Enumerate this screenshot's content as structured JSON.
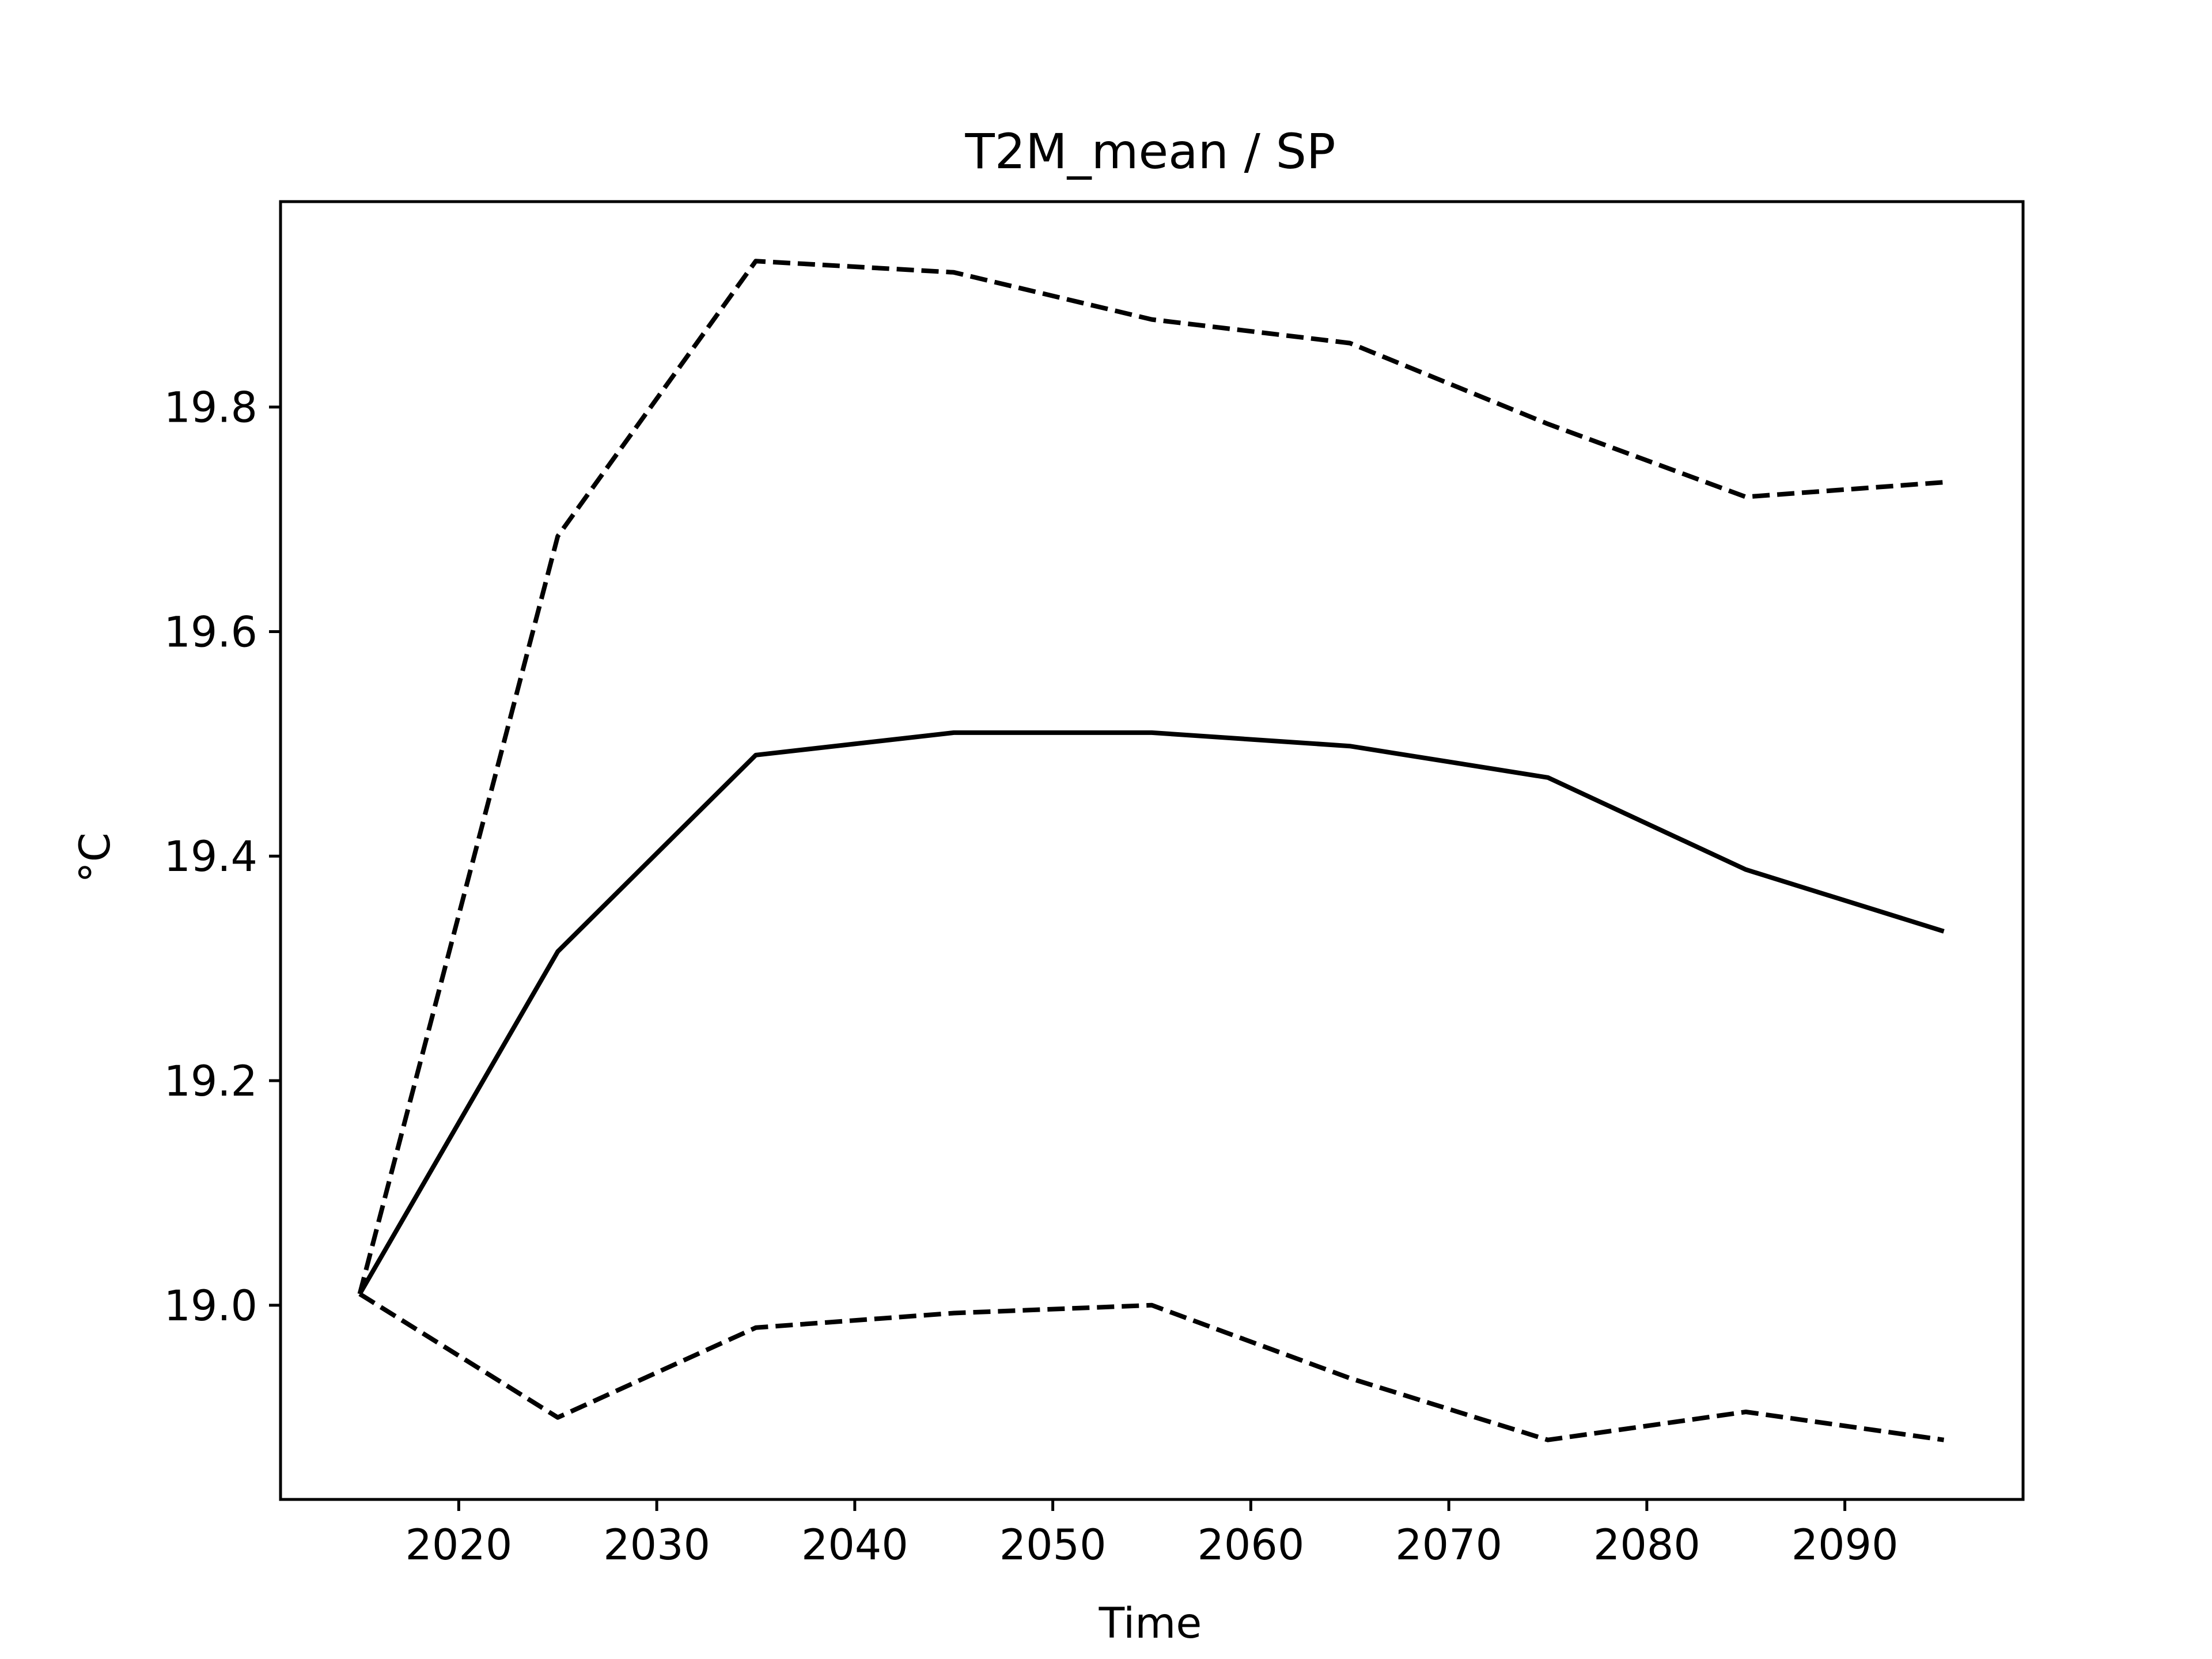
{
  "chart_data": {
    "type": "line",
    "title": "T2M_mean / SP",
    "xlabel": "Time",
    "ylabel": "°C",
    "xlim": [
      2011,
      2099
    ],
    "ylim": [
      18.827,
      19.983
    ],
    "xticks": [
      2020,
      2030,
      2040,
      2050,
      2060,
      2070,
      2080,
      2090
    ],
    "yticks": [
      19.0,
      19.2,
      19.4,
      19.6,
      19.8
    ],
    "ytick_labels": [
      "19.0",
      "19.2",
      "19.4",
      "19.6",
      "19.8"
    ],
    "grid": false,
    "legend": "none",
    "x": [
      2015,
      2025,
      2035,
      2045,
      2055,
      2065,
      2075,
      2085,
      2095
    ],
    "series": [
      {
        "style": "dashed",
        "color": "#000000",
        "values": [
          19.01,
          19.685,
          19.93,
          19.92,
          19.878,
          19.857,
          19.785,
          19.72,
          19.733
        ]
      },
      {
        "style": "solid",
        "color": "#000000",
        "values": [
          19.01,
          19.315,
          19.49,
          19.51,
          19.51,
          19.498,
          19.47,
          19.388,
          19.333
        ]
      },
      {
        "style": "dashed",
        "color": "#000000",
        "values": [
          19.01,
          18.9,
          18.98,
          18.993,
          19.0,
          18.935,
          18.88,
          18.905,
          18.88
        ]
      }
    ]
  }
}
